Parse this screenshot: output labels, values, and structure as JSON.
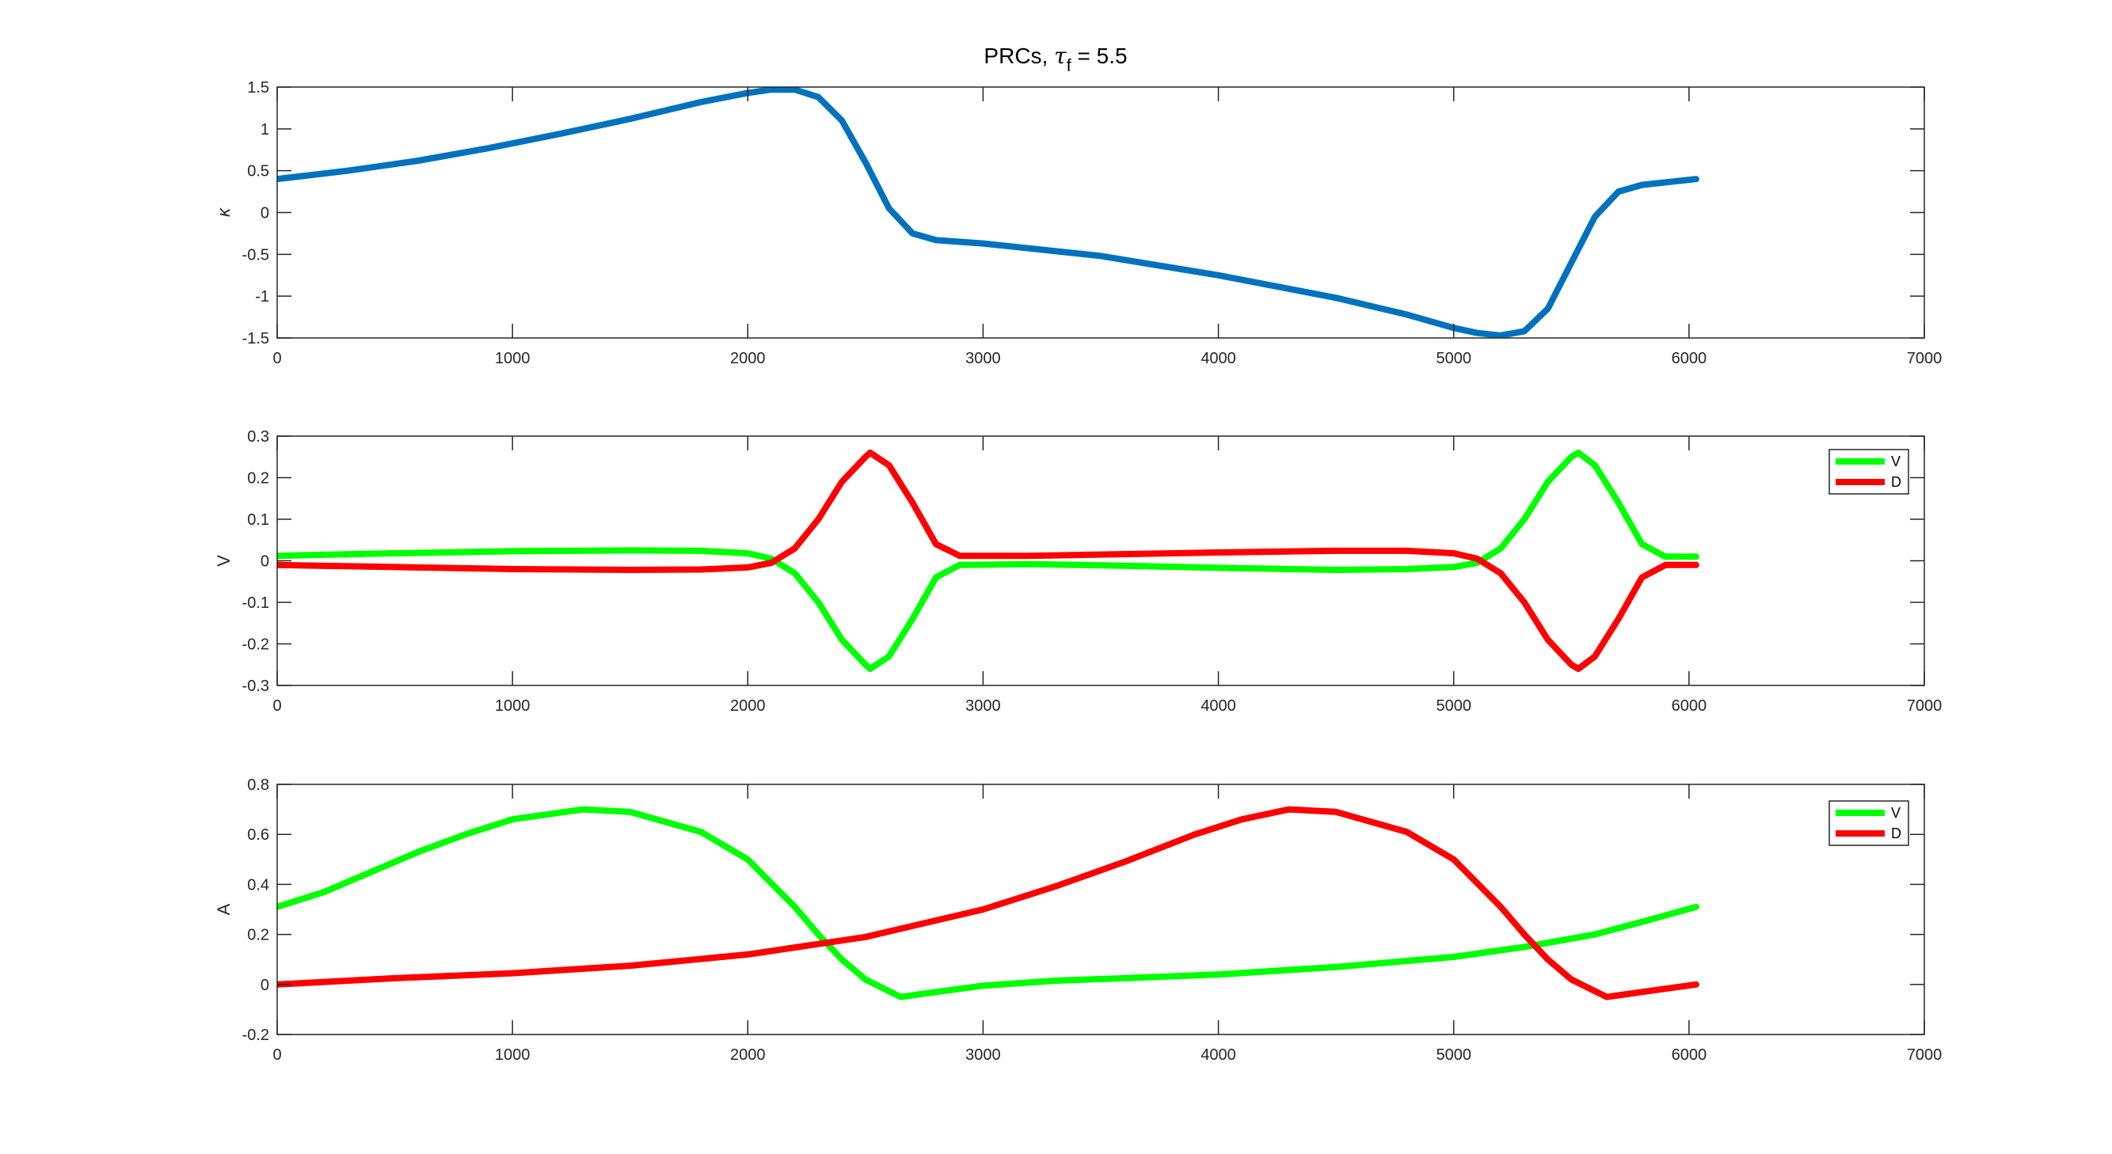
{
  "figure": {
    "title_prefix": "PRCs, ",
    "title_symbol": "τ",
    "title_subscript": "f",
    "title_suffix": " = 5.5"
  },
  "colors": {
    "axes": "#262626",
    "kappa": "#0072BD",
    "V": "#00FF00",
    "D": "#FF0000"
  },
  "chart_data": [
    {
      "type": "line",
      "xlim": [
        0,
        7000
      ],
      "ylim": [
        -1.5,
        1.5
      ],
      "xticks": [
        0,
        1000,
        2000,
        3000,
        4000,
        5000,
        6000,
        7000
      ],
      "yticks": [
        -1.5,
        -1,
        -0.5,
        0,
        0.5,
        1,
        1.5
      ],
      "xtick_labels": [
        "0",
        "1000",
        "2000",
        "3000",
        "4000",
        "5000",
        "6000",
        "7000"
      ],
      "ytick_labels": [
        "-1.5",
        "-1",
        "-0.5",
        "0",
        "0.5",
        "1",
        "1.5"
      ],
      "xlabel": "",
      "ylabel": "κ",
      "legend": null,
      "series": [
        {
          "color": "#0072BD",
          "x": [
            0,
            300,
            600,
            900,
            1200,
            1500,
            1800,
            2000,
            2100,
            2200,
            2300,
            2400,
            2500,
            2600,
            2700,
            2800,
            3000,
            3500,
            4000,
            4500,
            4800,
            5000,
            5100,
            5200,
            5300,
            5400,
            5500,
            5600,
            5700,
            5800,
            6030
          ],
          "y": [
            0.4,
            0.5,
            0.62,
            0.77,
            0.94,
            1.12,
            1.32,
            1.43,
            1.47,
            1.47,
            1.38,
            1.1,
            0.6,
            0.05,
            -0.25,
            -0.33,
            -0.37,
            -0.52,
            -0.75,
            -1.02,
            -1.22,
            -1.38,
            -1.44,
            -1.47,
            -1.42,
            -1.15,
            -0.6,
            -0.05,
            0.25,
            0.33,
            0.4
          ]
        }
      ]
    },
    {
      "type": "line",
      "xlim": [
        0,
        7000
      ],
      "ylim": [
        -0.3,
        0.3
      ],
      "xticks": [
        0,
        1000,
        2000,
        3000,
        4000,
        5000,
        6000,
        7000
      ],
      "yticks": [
        -0.3,
        -0.2,
        -0.1,
        0,
        0.1,
        0.2,
        0.3
      ],
      "xtick_labels": [
        "0",
        "1000",
        "2000",
        "3000",
        "4000",
        "5000",
        "6000",
        "7000"
      ],
      "ytick_labels": [
        "-0.3",
        "-0.2",
        "-0.1",
        "0",
        "0.1",
        "0.2",
        "0.3"
      ],
      "xlabel": "",
      "ylabel": "V",
      "legend": "top-right",
      "series": [
        {
          "name": "V",
          "color": "#00FF00",
          "x": [
            0,
            500,
            1000,
            1500,
            1800,
            2000,
            2100,
            2200,
            2300,
            2400,
            2500,
            2520,
            2600,
            2700,
            2800,
            2900,
            3200,
            3600,
            4000,
            4500,
            4800,
            5000,
            5100,
            5200,
            5300,
            5400,
            5500,
            5530,
            5600,
            5700,
            5800,
            5900,
            6030
          ],
          "y": [
            0.012,
            0.018,
            0.023,
            0.025,
            0.024,
            0.018,
            0.005,
            -0.03,
            -0.1,
            -0.19,
            -0.25,
            -0.26,
            -0.23,
            -0.14,
            -0.04,
            -0.01,
            -0.008,
            -0.012,
            -0.017,
            -0.022,
            -0.02,
            -0.015,
            -0.005,
            0.03,
            0.1,
            0.19,
            0.25,
            0.26,
            0.23,
            0.14,
            0.04,
            0.01,
            0.01
          ]
        },
        {
          "name": "D",
          "color": "#FF0000",
          "x": [
            0,
            500,
            1000,
            1500,
            1800,
            2000,
            2100,
            2200,
            2300,
            2400,
            2500,
            2520,
            2600,
            2700,
            2800,
            2900,
            3200,
            3600,
            4000,
            4500,
            4800,
            5000,
            5100,
            5200,
            5300,
            5400,
            5500,
            5530,
            5600,
            5700,
            5800,
            5900,
            6030
          ],
          "y": [
            -0.01,
            -0.015,
            -0.02,
            -0.022,
            -0.021,
            -0.016,
            -0.005,
            0.03,
            0.1,
            0.19,
            0.25,
            0.26,
            0.23,
            0.14,
            0.04,
            0.012,
            0.012,
            0.016,
            0.02,
            0.024,
            0.024,
            0.018,
            0.005,
            -0.03,
            -0.1,
            -0.19,
            -0.25,
            -0.26,
            -0.23,
            -0.14,
            -0.04,
            -0.01,
            -0.01
          ]
        }
      ]
    },
    {
      "type": "line",
      "xlim": [
        0,
        7000
      ],
      "ylim": [
        -0.2,
        0.8
      ],
      "xticks": [
        0,
        1000,
        2000,
        3000,
        4000,
        5000,
        6000,
        7000
      ],
      "yticks": [
        -0.2,
        0,
        0.2,
        0.4,
        0.6,
        0.8
      ],
      "xtick_labels": [
        "0",
        "1000",
        "2000",
        "3000",
        "4000",
        "5000",
        "6000",
        "7000"
      ],
      "ytick_labels": [
        "-0.2",
        "0",
        "0.2",
        "0.4",
        "0.6",
        "0.8"
      ],
      "xlabel": "",
      "ylabel": "A",
      "legend": "top-right",
      "series": [
        {
          "name": "V",
          "color": "#00FF00",
          "x": [
            0,
            200,
            400,
            600,
            800,
            1000,
            1300,
            1500,
            1800,
            2000,
            2200,
            2300,
            2400,
            2500,
            2650,
            2800,
            3000,
            3300,
            3600,
            4000,
            4500,
            5000,
            5300,
            5600,
            5800,
            6030
          ],
          "y": [
            0.31,
            0.37,
            0.45,
            0.53,
            0.6,
            0.66,
            0.7,
            0.69,
            0.61,
            0.5,
            0.31,
            0.2,
            0.1,
            0.02,
            -0.05,
            -0.03,
            -0.005,
            0.015,
            0.025,
            0.04,
            0.07,
            0.11,
            0.15,
            0.2,
            0.25,
            0.31
          ]
        },
        {
          "name": "D",
          "color": "#FF0000",
          "x": [
            0,
            500,
            1000,
            1500,
            2000,
            2500,
            3000,
            3300,
            3600,
            3900,
            4100,
            4300,
            4500,
            4800,
            5000,
            5200,
            5300,
            5400,
            5500,
            5650,
            5800,
            6030
          ],
          "y": [
            0.0,
            0.025,
            0.045,
            0.075,
            0.12,
            0.19,
            0.3,
            0.39,
            0.49,
            0.6,
            0.66,
            0.7,
            0.69,
            0.61,
            0.5,
            0.31,
            0.2,
            0.1,
            0.02,
            -0.05,
            -0.03,
            0.0
          ]
        }
      ]
    }
  ]
}
